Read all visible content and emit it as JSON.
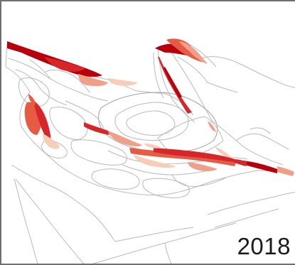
{
  "map": {
    "year_label": "2018",
    "colors": {
      "background": "#ffffff",
      "outline": "#b9b9b9",
      "class_1_darkest": "#b7000b",
      "class_2": "#d7262a",
      "class_3": "#e65b44",
      "class_4": "#f0a088",
      "class_5_lightest": "#f8cdb8"
    }
  }
}
